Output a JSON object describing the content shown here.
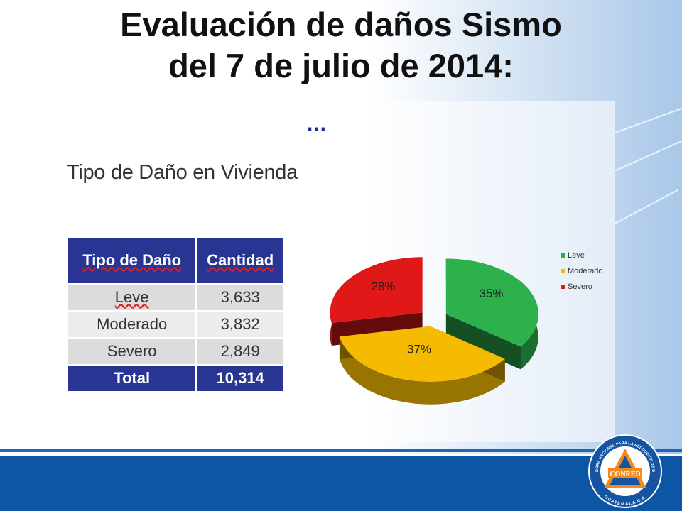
{
  "slide": {
    "title_line1": "Evaluación de daños Sismo",
    "title_line2": "del 7 de julio de 2014:",
    "dots": "...",
    "subtitle": "Tipo de Daño en Vivienda"
  },
  "table": {
    "headers": [
      "Tipo de Daño",
      "Cantidad"
    ],
    "rows": [
      {
        "tipo": "Leve",
        "cantidad": "3,633"
      },
      {
        "tipo": "Moderado",
        "cantidad": "3,832"
      },
      {
        "tipo": "Severo",
        "cantidad": "2,849"
      }
    ],
    "total": {
      "label": "Total",
      "value": "10,314"
    }
  },
  "chart_data": {
    "type": "pie",
    "categories": [
      "Leve",
      "Moderado",
      "Severo"
    ],
    "values": [
      35,
      37,
      28
    ],
    "labels": [
      "35%",
      "37%",
      "28%"
    ],
    "colors": [
      "#2db14d",
      "#f5bb00",
      "#e01818"
    ],
    "legend_position": "right",
    "exploded": true,
    "style": "3d"
  },
  "logo": {
    "name": "CONRED",
    "ring_text_top": "COORDINADORA NACIONAL PARA LA REDUCCIÓN DE DESASTRES",
    "ring_text_bottom": "GUATEMALA,C.A."
  }
}
